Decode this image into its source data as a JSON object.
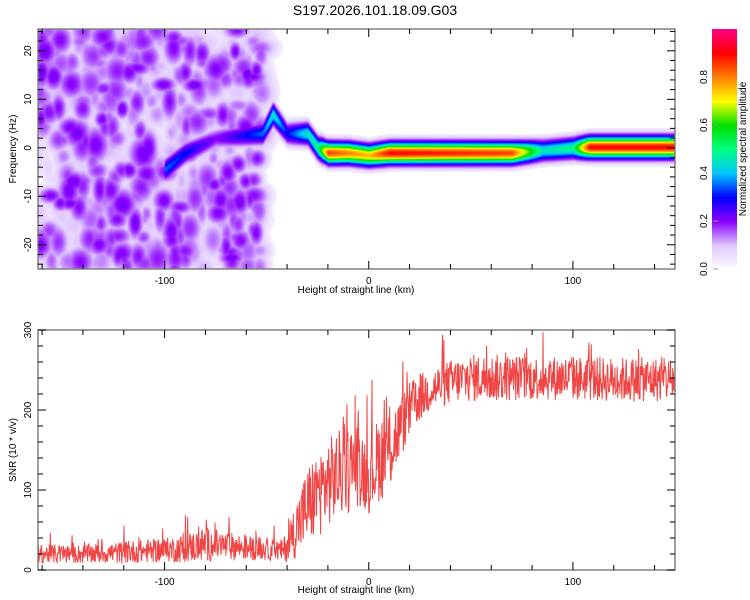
{
  "title": "S197.2026.101.18.09.G03",
  "chart_data": [
    {
      "type": "heatmap",
      "title": "S197.2026.101.18.09.G03",
      "xlabel": "Height of straight line (km)",
      "ylabel": "Frequency (Hz)",
      "xlim": [
        -162,
        150
      ],
      "ylim": [
        -25,
        24.5
      ],
      "x_ticks": [
        {
          "value": -100,
          "label": "-100"
        },
        {
          "value": 0,
          "label": "0"
        },
        {
          "value": 100,
          "label": "100"
        }
      ],
      "y_ticks": [
        {
          "value": -20,
          "label": "-20"
        },
        {
          "value": -10,
          "label": "-10"
        },
        {
          "value": 0,
          "label": "0"
        },
        {
          "value": 10,
          "label": "10"
        },
        {
          "value": 20,
          "label": "20"
        }
      ],
      "noise_region_km": [
        -162,
        -52
      ],
      "signal_track": [
        {
          "x": -100,
          "freq": -4.5,
          "amp": 0.35
        },
        {
          "x": -90,
          "freq": -1,
          "amp": 0.3
        },
        {
          "x": -75,
          "freq": 2,
          "amp": 0.2
        },
        {
          "x": -52,
          "freq": 3,
          "amp": 0.35
        },
        {
          "x": -47,
          "freq": 7,
          "amp": 0.45
        },
        {
          "x": -40,
          "freq": 3,
          "amp": 0.3
        },
        {
          "x": -30,
          "freq": 3,
          "amp": 0.45
        },
        {
          "x": -25,
          "freq": 0,
          "amp": 0.5
        },
        {
          "x": -20,
          "freq": -1,
          "amp": 0.85
        },
        {
          "x": -10,
          "freq": -1,
          "amp": 0.8
        },
        {
          "x": 0,
          "freq": -1.5,
          "amp": 0.75
        },
        {
          "x": 10,
          "freq": -1,
          "amp": 0.9
        },
        {
          "x": 70,
          "freq": -1,
          "amp": 0.85
        },
        {
          "x": 85,
          "freq": -0.5,
          "amp": 0.45
        },
        {
          "x": 100,
          "freq": 0,
          "amp": 0.5
        },
        {
          "x": 108,
          "freq": 0.2,
          "amp": 0.9
        },
        {
          "x": 150,
          "freq": 0.2,
          "amp": 0.9
        }
      ],
      "colorbar": {
        "label": "Normalized spectral amplitude",
        "range": [
          0,
          1
        ],
        "ticks": [
          {
            "value": 0.0,
            "label": "0.0"
          },
          {
            "value": 0.2,
            "label": "0.2"
          },
          {
            "value": 0.4,
            "label": "0.4"
          },
          {
            "value": 0.6,
            "label": "0.6"
          },
          {
            "value": 0.8,
            "label": "0.8"
          }
        ],
        "colors": [
          "#ffffff",
          "#e0c8ff",
          "#8a00ff",
          "#0000ff",
          "#00c8ff",
          "#00ff80",
          "#00e000",
          "#ffff00",
          "#ff8000",
          "#ff0000",
          "#ff0080"
        ]
      }
    },
    {
      "type": "line",
      "xlabel": "Height of straight line (km)",
      "ylabel": "SNR (10 * v/v)",
      "xlim": [
        -162,
        150
      ],
      "ylim": [
        0,
        300
      ],
      "x_ticks": [
        {
          "value": -100,
          "label": "-100"
        },
        {
          "value": 0,
          "label": "0"
        },
        {
          "value": 100,
          "label": "100"
        }
      ],
      "y_ticks": [
        {
          "value": 0,
          "label": "0"
        },
        {
          "value": 100,
          "label": "100"
        },
        {
          "value": 200,
          "label": "200"
        },
        {
          "value": 300,
          "label": "300"
        }
      ],
      "color": "#f03030",
      "series": [
        {
          "name": "SNR",
          "x": [
            -162,
            -140,
            -120,
            -100,
            -90,
            -80,
            -70,
            -60,
            -50,
            -42,
            -38,
            -34,
            -30,
            -25,
            -20,
            -15,
            -10,
            -5,
            0,
            5,
            10,
            15,
            20,
            25,
            30,
            40,
            50,
            60,
            80,
            100,
            120,
            150
          ],
          "mean": [
            20,
            20,
            22,
            25,
            27,
            32,
            30,
            28,
            26,
            24,
            40,
            60,
            80,
            95,
            110,
            120,
            125,
            135,
            115,
            140,
            150,
            175,
            200,
            215,
            225,
            235,
            240,
            240,
            240,
            240,
            238,
            238
          ],
          "spread": [
            12,
            12,
            14,
            15,
            18,
            22,
            18,
            16,
            14,
            14,
            30,
            40,
            50,
            55,
            55,
            55,
            55,
            55,
            45,
            55,
            55,
            40,
            35,
            30,
            28,
            28,
            30,
            30,
            28,
            28,
            28,
            28
          ]
        }
      ]
    }
  ]
}
